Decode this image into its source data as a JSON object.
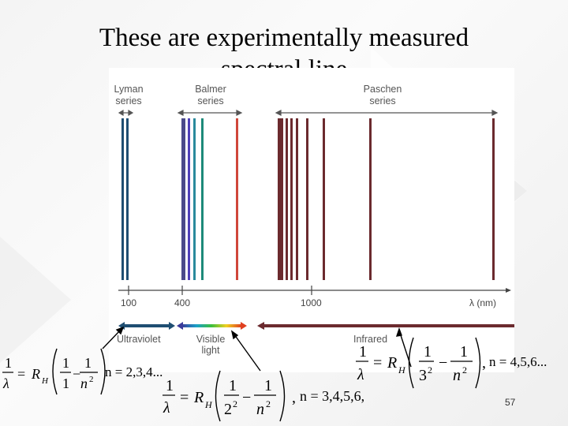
{
  "slide": {
    "title_line1": "These are experimentally measured",
    "title_line2": "spectral line",
    "page_number": "57"
  },
  "spectrum": {
    "series": [
      {
        "name": "Lyman",
        "label_line1": "Lyman",
        "label_line2": "series",
        "color": "#1f4e72"
      },
      {
        "name": "Balmer",
        "label_line1": "Balmer",
        "label_line2": "series",
        "color": "#4a4a8a"
      },
      {
        "name": "Paschen",
        "label_line1": "Paschen",
        "label_line2": "series",
        "color": "#6b2a2e"
      }
    ],
    "axis_ticks": [
      "100",
      "400",
      "1000"
    ],
    "axis_label": "λ (nm)",
    "regions": [
      {
        "label_line1": "Ultraviolet",
        "label_line2": ""
      },
      {
        "label_line1": "Visible",
        "label_line2": "light"
      },
      {
        "label_line1": "Infrared",
        "label_line2": ""
      }
    ]
  },
  "equations": {
    "lyman": {
      "n1": "1",
      "n_values": "n = 2,3,4..."
    },
    "balmer": {
      "n1": "2",
      "n_values": "n = 3,4,5,6,"
    },
    "paschen": {
      "n1": "3",
      "n_values": "n = 4,5,6..."
    },
    "symbols": {
      "one": "1",
      "lambda": "λ",
      "R": "R",
      "H": "H",
      "n_sq": "n",
      "sq": "2"
    }
  }
}
